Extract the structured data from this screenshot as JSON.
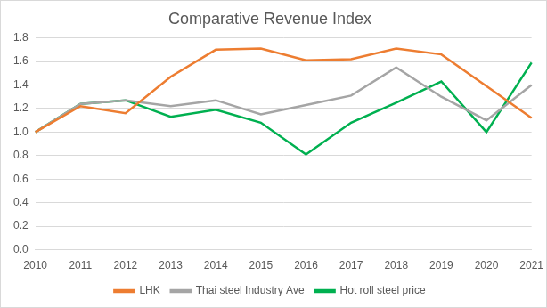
{
  "chart_data": {
    "type": "line",
    "title": "Comparative Revenue Index",
    "categories": [
      "2010",
      "2011",
      "2012",
      "2013",
      "2014",
      "2015",
      "2016",
      "2017",
      "2018",
      "2019",
      "2020",
      "2021"
    ],
    "series": [
      {
        "name": "LHK",
        "color": "#ed7d31",
        "values": [
          1.0,
          1.22,
          1.16,
          1.47,
          1.7,
          1.71,
          1.61,
          1.62,
          1.71,
          1.66,
          1.39,
          1.12
        ]
      },
      {
        "name": "Thai steel Industry Ave",
        "color": "#a5a5a5",
        "values": [
          1.0,
          1.24,
          1.27,
          1.22,
          1.27,
          1.15,
          1.23,
          1.31,
          1.55,
          1.3,
          1.1,
          1.4
        ]
      },
      {
        "name": "Hot roll steel price",
        "color": "#00b050",
        "values": [
          1.0,
          1.24,
          1.27,
          1.13,
          1.19,
          1.08,
          0.81,
          1.08,
          1.25,
          1.43,
          1.0,
          1.59
        ]
      }
    ],
    "ylim": [
      0,
      1.8
    ],
    "yticks": [
      {
        "value": 0,
        "label": "0.0"
      },
      0.2,
      0.4,
      0.6,
      0.8,
      {
        "value": 1,
        "label": "1.0"
      },
      1.2,
      1.4,
      1.6,
      1.8
    ],
    "grid": true,
    "legend": "bottom",
    "marker": "none"
  }
}
